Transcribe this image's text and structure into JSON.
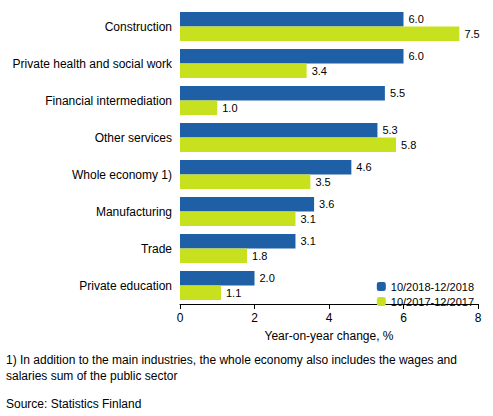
{
  "chart_data": {
    "type": "bar",
    "orientation": "horizontal",
    "categories": [
      "Construction",
      "Private health and social work",
      "Financial intermediation",
      "Other services",
      "Whole economy 1)",
      "Manufacturing",
      "Trade",
      "Private education"
    ],
    "series": [
      {
        "name": "10/2018-12/2018",
        "color": "#1f5fa6",
        "values": [
          6.0,
          6.0,
          5.5,
          5.3,
          4.6,
          3.6,
          3.1,
          2.0
        ],
        "value_labels": [
          "6.0",
          "6.0",
          "5.5",
          "5.3",
          "4.6",
          "3.6",
          "3.1",
          "2.0"
        ]
      },
      {
        "name": "10/2017-12/2017",
        "color": "#c8e11e",
        "values": [
          7.5,
          3.4,
          1.0,
          5.8,
          3.5,
          3.1,
          1.8,
          1.1
        ],
        "value_labels": [
          "7.5",
          "3.4",
          "1.0",
          "5.8",
          "3.5",
          "3.1",
          "1.8",
          "1.1"
        ]
      }
    ],
    "xlabel": "Year-on-year change, %",
    "xlim": [
      0,
      8
    ],
    "xticks": [
      0,
      2,
      4,
      6,
      8
    ],
    "grid": false,
    "legend": "lower right",
    "data_labels": true,
    "annotations": [
      "1) In addition to the main industries, the whole economy also includes the wages and salaries sum of the public sector",
      "Source: Statistics Finland"
    ]
  }
}
